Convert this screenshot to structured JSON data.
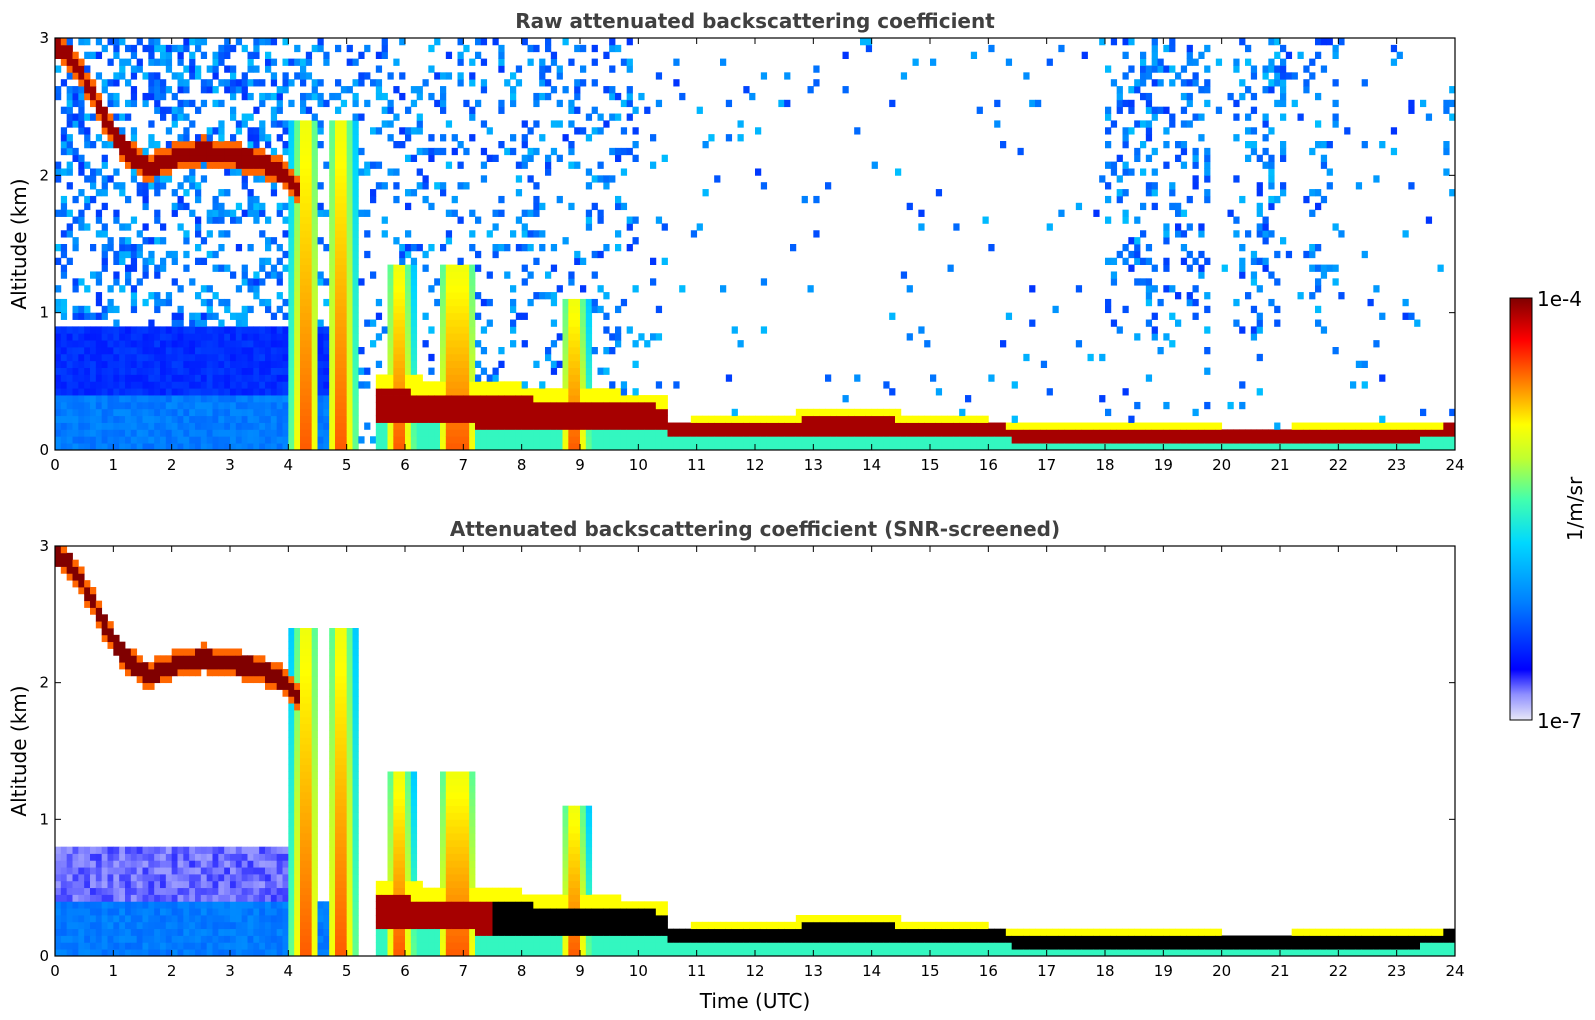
{
  "chart_data": [
    {
      "type": "heatmap",
      "title": "Raw attenuated backscattering coefficient",
      "xlabel": "",
      "ylabel": "Altitude (km)",
      "xlim": [
        0,
        24
      ],
      "ylim": [
        0,
        3
      ],
      "x_ticks": [
        "0",
        "1",
        "2",
        "3",
        "4",
        "5",
        "6",
        "7",
        "8",
        "9",
        "10",
        "11",
        "12",
        "13",
        "14",
        "15",
        "16",
        "17",
        "18",
        "19",
        "20",
        "21",
        "22",
        "23",
        "24"
      ],
      "y_ticks": [
        "0",
        "1",
        "2",
        "3"
      ],
      "features": {
        "elevated_layer": {
          "time": [
            0.0,
            0.3,
            0.7,
            1.0,
            1.3,
            1.6,
            2.0,
            2.5,
            3.0,
            3.5,
            4.0,
            4.2
          ],
          "altitude": [
            2.95,
            2.85,
            2.55,
            2.3,
            2.15,
            2.05,
            2.12,
            2.18,
            2.15,
            2.1,
            2.0,
            1.85
          ]
        },
        "boundary_layer_top": {
          "time": [
            10.5,
            12,
            13.6,
            15,
            17,
            19,
            21,
            22,
            23.9
          ],
          "altitude": [
            0.22,
            0.24,
            0.32,
            0.25,
            0.2,
            0.18,
            0.17,
            0.2,
            0.22
          ]
        },
        "rain_shafts_utc": [
          4.3,
          4.9,
          5.9,
          6.8,
          7.0,
          8.9
        ],
        "noise_columns_utc": [
          [
            18.0,
            19.8
          ],
          [
            20.2,
            21.1
          ],
          [
            21.5,
            22.0
          ]
        ]
      }
    },
    {
      "type": "heatmap",
      "title": "Attenuated backscattering coefficient (SNR-screened)",
      "xlabel": "Time (UTC)",
      "ylabel": "Altitude (km)",
      "xlim": [
        0,
        24
      ],
      "ylim": [
        0,
        3
      ],
      "x_ticks": [
        "0",
        "1",
        "2",
        "3",
        "4",
        "5",
        "6",
        "7",
        "8",
        "9",
        "10",
        "11",
        "12",
        "13",
        "14",
        "15",
        "16",
        "17",
        "18",
        "19",
        "20",
        "21",
        "22",
        "23",
        "24"
      ],
      "y_ticks": [
        "0",
        "1",
        "2",
        "3"
      ]
    }
  ],
  "colorbar": {
    "label": "1/m/sr",
    "max_label": "1e-4",
    "min_label": "1e-7",
    "colormap": [
      "#e8e8f8",
      "#8080ff",
      "#0000ff",
      "#0080ff",
      "#00d0ff",
      "#40ffc0",
      "#c0ff40",
      "#ffff00",
      "#ff8000",
      "#ff0000",
      "#800000"
    ]
  }
}
